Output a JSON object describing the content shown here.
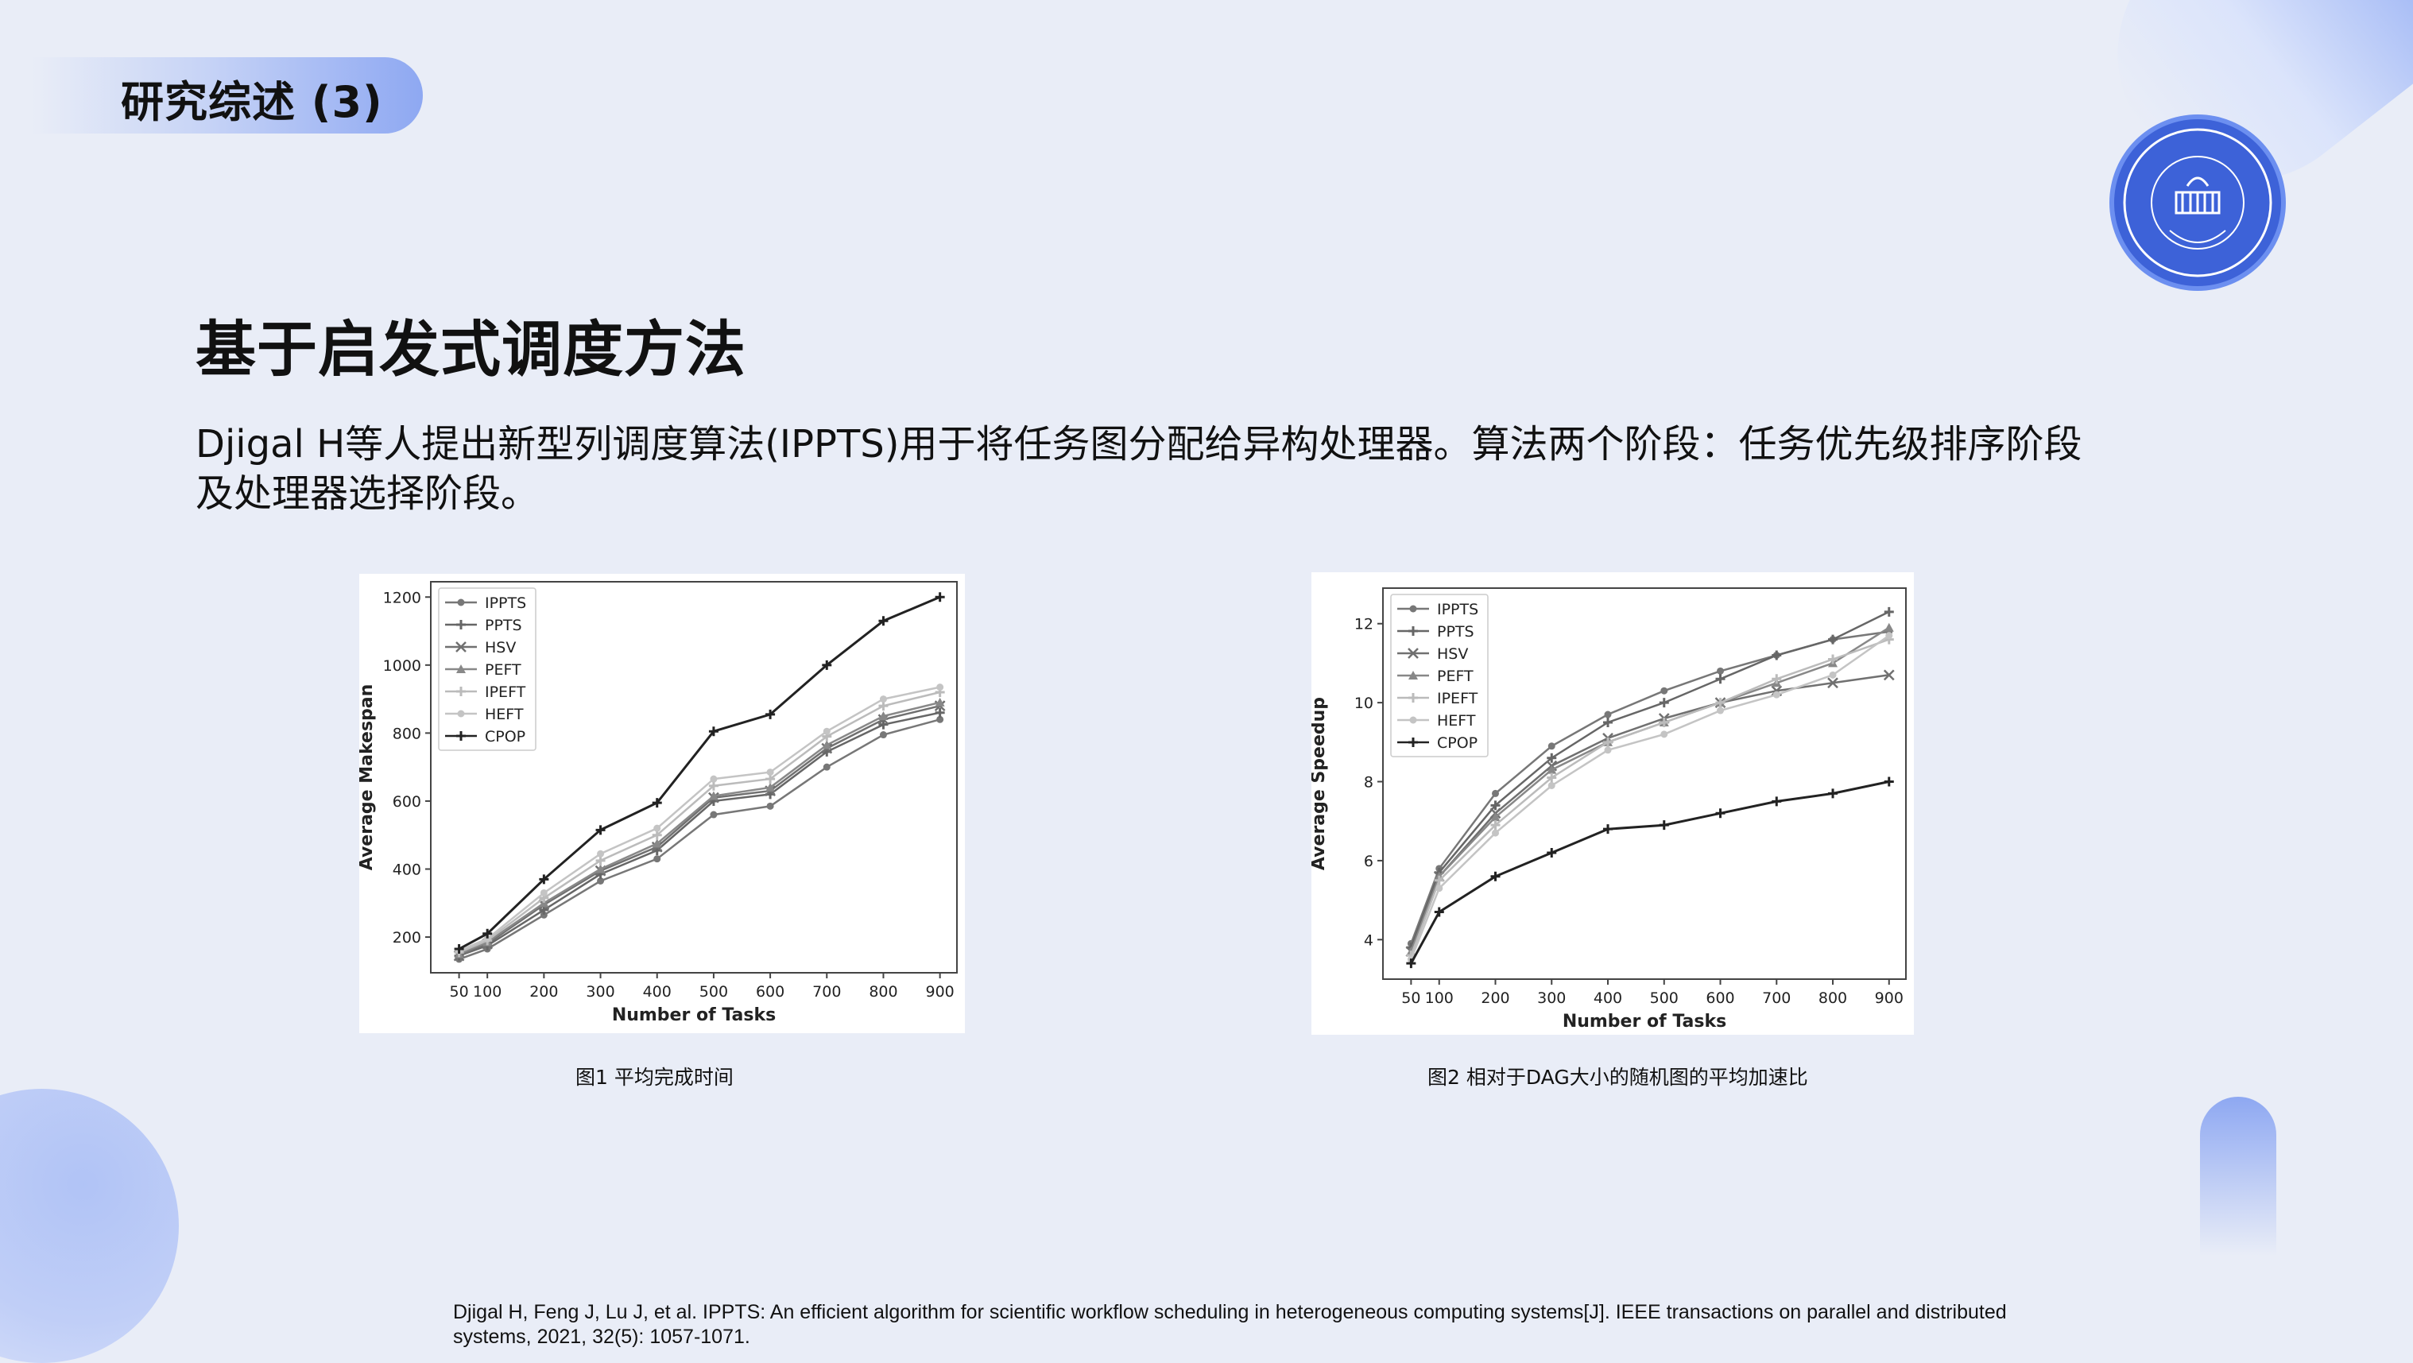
{
  "slide": {
    "section_title": "研究综述 (3)",
    "heading": "基于启发式调度方法",
    "paragraph": "Djigal H等人提出新型列调度算法(IPPTS)用于将任务图分配给异构处理器。算法两个阶段：任务优先级排序阶段及处理器选择阶段。",
    "caption1": "图1 平均完成时间",
    "caption2": "图2 相对于DAG大小的随机图的平均加速比",
    "reference": "Djigal H, Feng J, Lu J, et al. IPPTS: An efficient algorithm for scientific workflow scheduling in heterogeneous computing systems[J]. IEEE transactions on parallel and distributed systems, 2021, 32(5): 1057-1071.",
    "logo_icon": "university-seal-icon"
  },
  "colors": {
    "background": "#e9edf7",
    "accent": "#8ea8f2",
    "accent_dark": "#3d62d8"
  },
  "chart_data": [
    {
      "type": "line",
      "xlabel": "Number of Tasks",
      "ylabel": "Average Makespan",
      "x": [
        50,
        100,
        200,
        300,
        400,
        500,
        600,
        700,
        800,
        900
      ],
      "xticks": [
        "50",
        "100",
        "200",
        "300",
        "400",
        "500",
        "600",
        "700",
        "800",
        "900"
      ],
      "yticks": [
        200,
        400,
        600,
        800,
        1000,
        1200
      ],
      "xlim": [
        0,
        930
      ],
      "ylim": [
        95,
        1245
      ],
      "grid": false,
      "legend_position": "top-left",
      "series": [
        {
          "name": "IPPTS",
          "color": "#777777",
          "marker": "dot",
          "values": [
            135,
            165,
            265,
            365,
            430,
            560,
            585,
            700,
            795,
            840
          ]
        },
        {
          "name": "PPTS",
          "color": "#666666",
          "marker": "plus",
          "values": [
            145,
            175,
            280,
            385,
            455,
            600,
            620,
            745,
            825,
            860
          ]
        },
        {
          "name": "HSV",
          "color": "#707070",
          "marker": "x",
          "values": [
            145,
            180,
            295,
            395,
            465,
            610,
            630,
            755,
            840,
            880
          ]
        },
        {
          "name": "PEFT",
          "color": "#888888",
          "marker": "tri",
          "values": [
            150,
            185,
            300,
            400,
            475,
            615,
            640,
            765,
            850,
            890
          ]
        },
        {
          "name": "IPEFT",
          "color": "#bbbbbb",
          "marker": "plus",
          "values": [
            155,
            190,
            315,
            425,
            500,
            645,
            665,
            790,
            880,
            920
          ]
        },
        {
          "name": "HEFT",
          "color": "#c4c4c4",
          "marker": "dot",
          "values": [
            160,
            195,
            330,
            445,
            520,
            665,
            685,
            805,
            900,
            935
          ]
        },
        {
          "name": "CPOP",
          "color": "#222222",
          "marker": "plus",
          "values": [
            165,
            210,
            370,
            515,
            595,
            805,
            855,
            1000,
            1130,
            1200
          ]
        }
      ]
    },
    {
      "type": "line",
      "xlabel": "Number of Tasks",
      "ylabel": "Average Speedup",
      "x": [
        50,
        100,
        200,
        300,
        400,
        500,
        600,
        700,
        800,
        900
      ],
      "xticks": [
        "50",
        "100",
        "200",
        "300",
        "400",
        "500",
        "600",
        "700",
        "800",
        "900"
      ],
      "yticks": [
        4,
        6,
        8,
        10,
        12
      ],
      "xlim": [
        0,
        930
      ],
      "ylim": [
        3,
        12.9
      ],
      "grid": false,
      "legend_position": "top-left",
      "series": [
        {
          "name": "IPPTS",
          "color": "#777777",
          "marker": "dot",
          "values": [
            3.9,
            5.8,
            7.7,
            8.9,
            9.7,
            10.3,
            10.8,
            11.2,
            11.6,
            11.8
          ]
        },
        {
          "name": "PPTS",
          "color": "#666666",
          "marker": "plus",
          "values": [
            3.8,
            5.7,
            7.4,
            8.6,
            9.5,
            10.0,
            10.6,
            11.2,
            11.6,
            12.3
          ]
        },
        {
          "name": "HSV",
          "color": "#707070",
          "marker": "x",
          "values": [
            3.7,
            5.6,
            7.2,
            8.4,
            9.1,
            9.6,
            10.0,
            10.3,
            10.5,
            10.7
          ]
        },
        {
          "name": "PEFT",
          "color": "#888888",
          "marker": "tri",
          "values": [
            3.7,
            5.6,
            7.1,
            8.3,
            9.0,
            9.5,
            10.0,
            10.5,
            11.0,
            11.9
          ]
        },
        {
          "name": "IPEFT",
          "color": "#bbbbbb",
          "marker": "plus",
          "values": [
            3.6,
            5.5,
            6.9,
            8.1,
            9.0,
            9.5,
            10.0,
            10.6,
            11.1,
            11.6
          ]
        },
        {
          "name": "HEFT",
          "color": "#c4c4c4",
          "marker": "dot",
          "values": [
            3.5,
            5.3,
            6.7,
            7.9,
            8.8,
            9.2,
            9.8,
            10.2,
            10.7,
            11.7
          ]
        },
        {
          "name": "CPOP",
          "color": "#222222",
          "marker": "plus",
          "values": [
            3.4,
            4.7,
            5.6,
            6.2,
            6.8,
            6.9,
            7.2,
            7.5,
            7.7,
            8.0
          ]
        }
      ]
    }
  ]
}
